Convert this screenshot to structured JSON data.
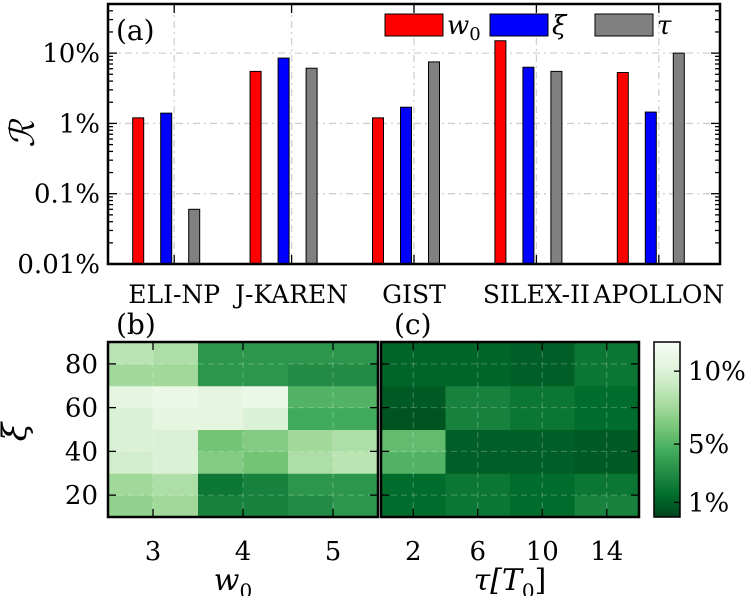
{
  "chart_data": [
    {
      "type": "bar",
      "panel_label": "(a)",
      "ylabel": "ℛ",
      "yscale": "log",
      "ylim": [
        0.01,
        50
      ],
      "yticks": [
        0.01,
        0.1,
        1,
        10
      ],
      "ytick_labels": [
        "0.01%",
        "0.1%",
        "1%",
        "10%"
      ],
      "grid": true,
      "legend_position": "top-right",
      "categories": [
        "ELI-NP",
        "J-KAREN",
        "GIST",
        "SILEX-II",
        "APOLLON"
      ],
      "series": [
        {
          "name": "w₀",
          "name_base": "w",
          "name_sub": "0",
          "color": "#ff0000",
          "values": [
            1.2,
            5.5,
            1.2,
            15,
            5.3
          ]
        },
        {
          "name": "ξ",
          "name_base": "ξ",
          "name_sub": "",
          "color": "#0000ff",
          "values": [
            1.4,
            8.5,
            1.7,
            6.3,
            1.45
          ]
        },
        {
          "name": "τ",
          "name_base": "τ",
          "name_sub": "",
          "color": "#808080",
          "values": [
            0.06,
            6.1,
            7.5,
            5.5,
            10
          ]
        }
      ]
    },
    {
      "type": "heatmap",
      "panel_label": "(b)",
      "xlabel": "w₀",
      "xlabel_base": "w",
      "xlabel_sub": "0",
      "ylabel": "ξ",
      "x": [
        2.5,
        3.0,
        3.5,
        4.0,
        4.5,
        5.0,
        5.5
      ],
      "y": [
        10,
        20,
        30,
        40,
        50,
        60,
        70,
        80,
        90
      ],
      "xticks": [
        3,
        4,
        5
      ],
      "yticks": [
        20,
        40,
        60,
        80
      ],
      "values": [
        [
          7.0,
          7.5,
          2.5,
          2.5,
          3.0,
          3.5
        ],
        [
          7.5,
          8.0,
          2.0,
          2.5,
          3.5,
          3.5
        ],
        [
          9.5,
          10.0,
          6.5,
          6.0,
          8.0,
          8.5
        ],
        [
          10.0,
          10.0,
          6.0,
          6.5,
          7.5,
          8.0
        ],
        [
          10.0,
          10.5,
          10.5,
          10.0,
          4.5,
          4.5
        ],
        [
          10.5,
          11.0,
          10.5,
          11.0,
          5.0,
          5.0
        ],
        [
          7.5,
          7.5,
          3.5,
          3.5,
          3.0,
          3.0
        ],
        [
          8.5,
          8.0,
          3.5,
          3.5,
          3.5,
          3.5
        ]
      ]
    },
    {
      "type": "heatmap",
      "panel_label": "(c)",
      "xlabel": "τ[T₀]",
      "xlabel_base": "τ[T",
      "xlabel_sub": "0",
      "xlabel_tail": "]",
      "x": [
        0,
        2,
        4,
        6,
        8,
        10,
        12,
        14,
        16
      ],
      "y": [
        10,
        20,
        30,
        40,
        50,
        60,
        70,
        80,
        90
      ],
      "xticks": [
        2,
        6,
        10,
        14
      ],
      "values": [
        [
          1.5,
          1.5,
          2.0,
          2.0,
          1.5,
          1.5,
          2.5,
          2.5
        ],
        [
          1.5,
          1.5,
          2.0,
          2.0,
          1.5,
          1.5,
          2.0,
          2.0
        ],
        [
          5.0,
          5.0,
          1.0,
          1.0,
          1.0,
          1.0,
          0.8,
          0.8
        ],
        [
          5.5,
          5.5,
          1.0,
          1.0,
          1.0,
          1.0,
          0.8,
          0.8
        ],
        [
          0.6,
          0.6,
          2.5,
          2.5,
          2.0,
          2.0,
          1.5,
          1.5
        ],
        [
          0.8,
          0.8,
          2.5,
          2.5,
          2.0,
          2.0,
          1.5,
          1.5
        ],
        [
          1.2,
          1.2,
          1.2,
          1.2,
          1.0,
          1.0,
          2.0,
          2.0
        ],
        [
          1.2,
          1.2,
          1.2,
          1.2,
          1.0,
          1.0,
          2.0,
          2.0
        ]
      ]
    }
  ],
  "colorbar": {
    "range": [
      0,
      12
    ],
    "ticks": [
      1,
      5,
      10
    ],
    "tick_labels": [
      "1%",
      "5%",
      "10%"
    ],
    "colors": [
      "#00441b",
      "#006d2c",
      "#238b45",
      "#41ab5d",
      "#74c476",
      "#a1d99b",
      "#c7e9c0",
      "#e5f5e0",
      "#f7fcf5"
    ]
  }
}
